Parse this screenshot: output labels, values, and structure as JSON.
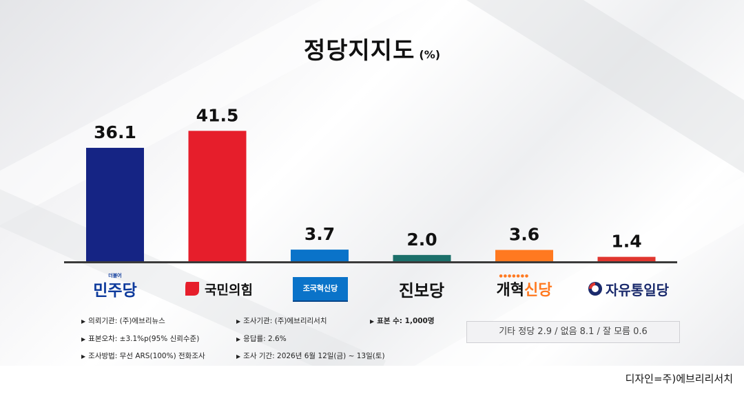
{
  "title": "정당지지도",
  "unit": "(%)",
  "chart_data": {
    "type": "bar",
    "categories": [
      "더불어민주당",
      "국민의힘",
      "조국혁신당",
      "진보당",
      "개혁신당",
      "자유통일당"
    ],
    "values": [
      36.1,
      41.5,
      3.7,
      2.0,
      3.6,
      1.4
    ],
    "value_labels": [
      "36.1",
      "41.5",
      "3.7",
      "2.0",
      "3.6",
      "1.4"
    ],
    "colors": [
      "#152484",
      "#e61e2b",
      "#0a73c9",
      "#1b6f6a",
      "#ff7920",
      "#e0362f"
    ],
    "ylim": [
      0,
      45
    ],
    "grid": false,
    "legend": "none"
  },
  "logos": {
    "dp": {
      "small": "더불어",
      "main": "민주당",
      "color": "#0d3a9c"
    },
    "ppp": {
      "main": "국민의힘",
      "color": "#e61e2b"
    },
    "rkp": {
      "main": "조국혁신당",
      "color": "#0a73c9"
    },
    "jinbo": {
      "main": "진보당",
      "color": "#111111"
    },
    "reform": {
      "main_a": "개혁",
      "main_b": "신당",
      "color_a": "#111111",
      "color_b": "#ff7920"
    },
    "libu": {
      "main": "자유통일당",
      "color": "#1a2a6c",
      "accent": "#e0362f"
    }
  },
  "notes": {
    "col1": [
      "의뢰기관: (주)에브리뉴스",
      "표본오차: ±3.1%p(95% 신뢰수준)",
      "조사방법: 무선 ARS(100%) 전화조사"
    ],
    "col2": [
      "조사기관: (주)에브리리서치",
      "응답률: 2.6%",
      "조사 기간: 2026년 6월 12일(금) ~ 13일(토)"
    ],
    "col3": [
      "표본 수: 1,000명"
    ]
  },
  "others_box": "기타 정당 2.9 / 없음 8.1 / 잘 모름 0.6",
  "credit": "디자인=주)에브리리서치",
  "bullet": "▶"
}
